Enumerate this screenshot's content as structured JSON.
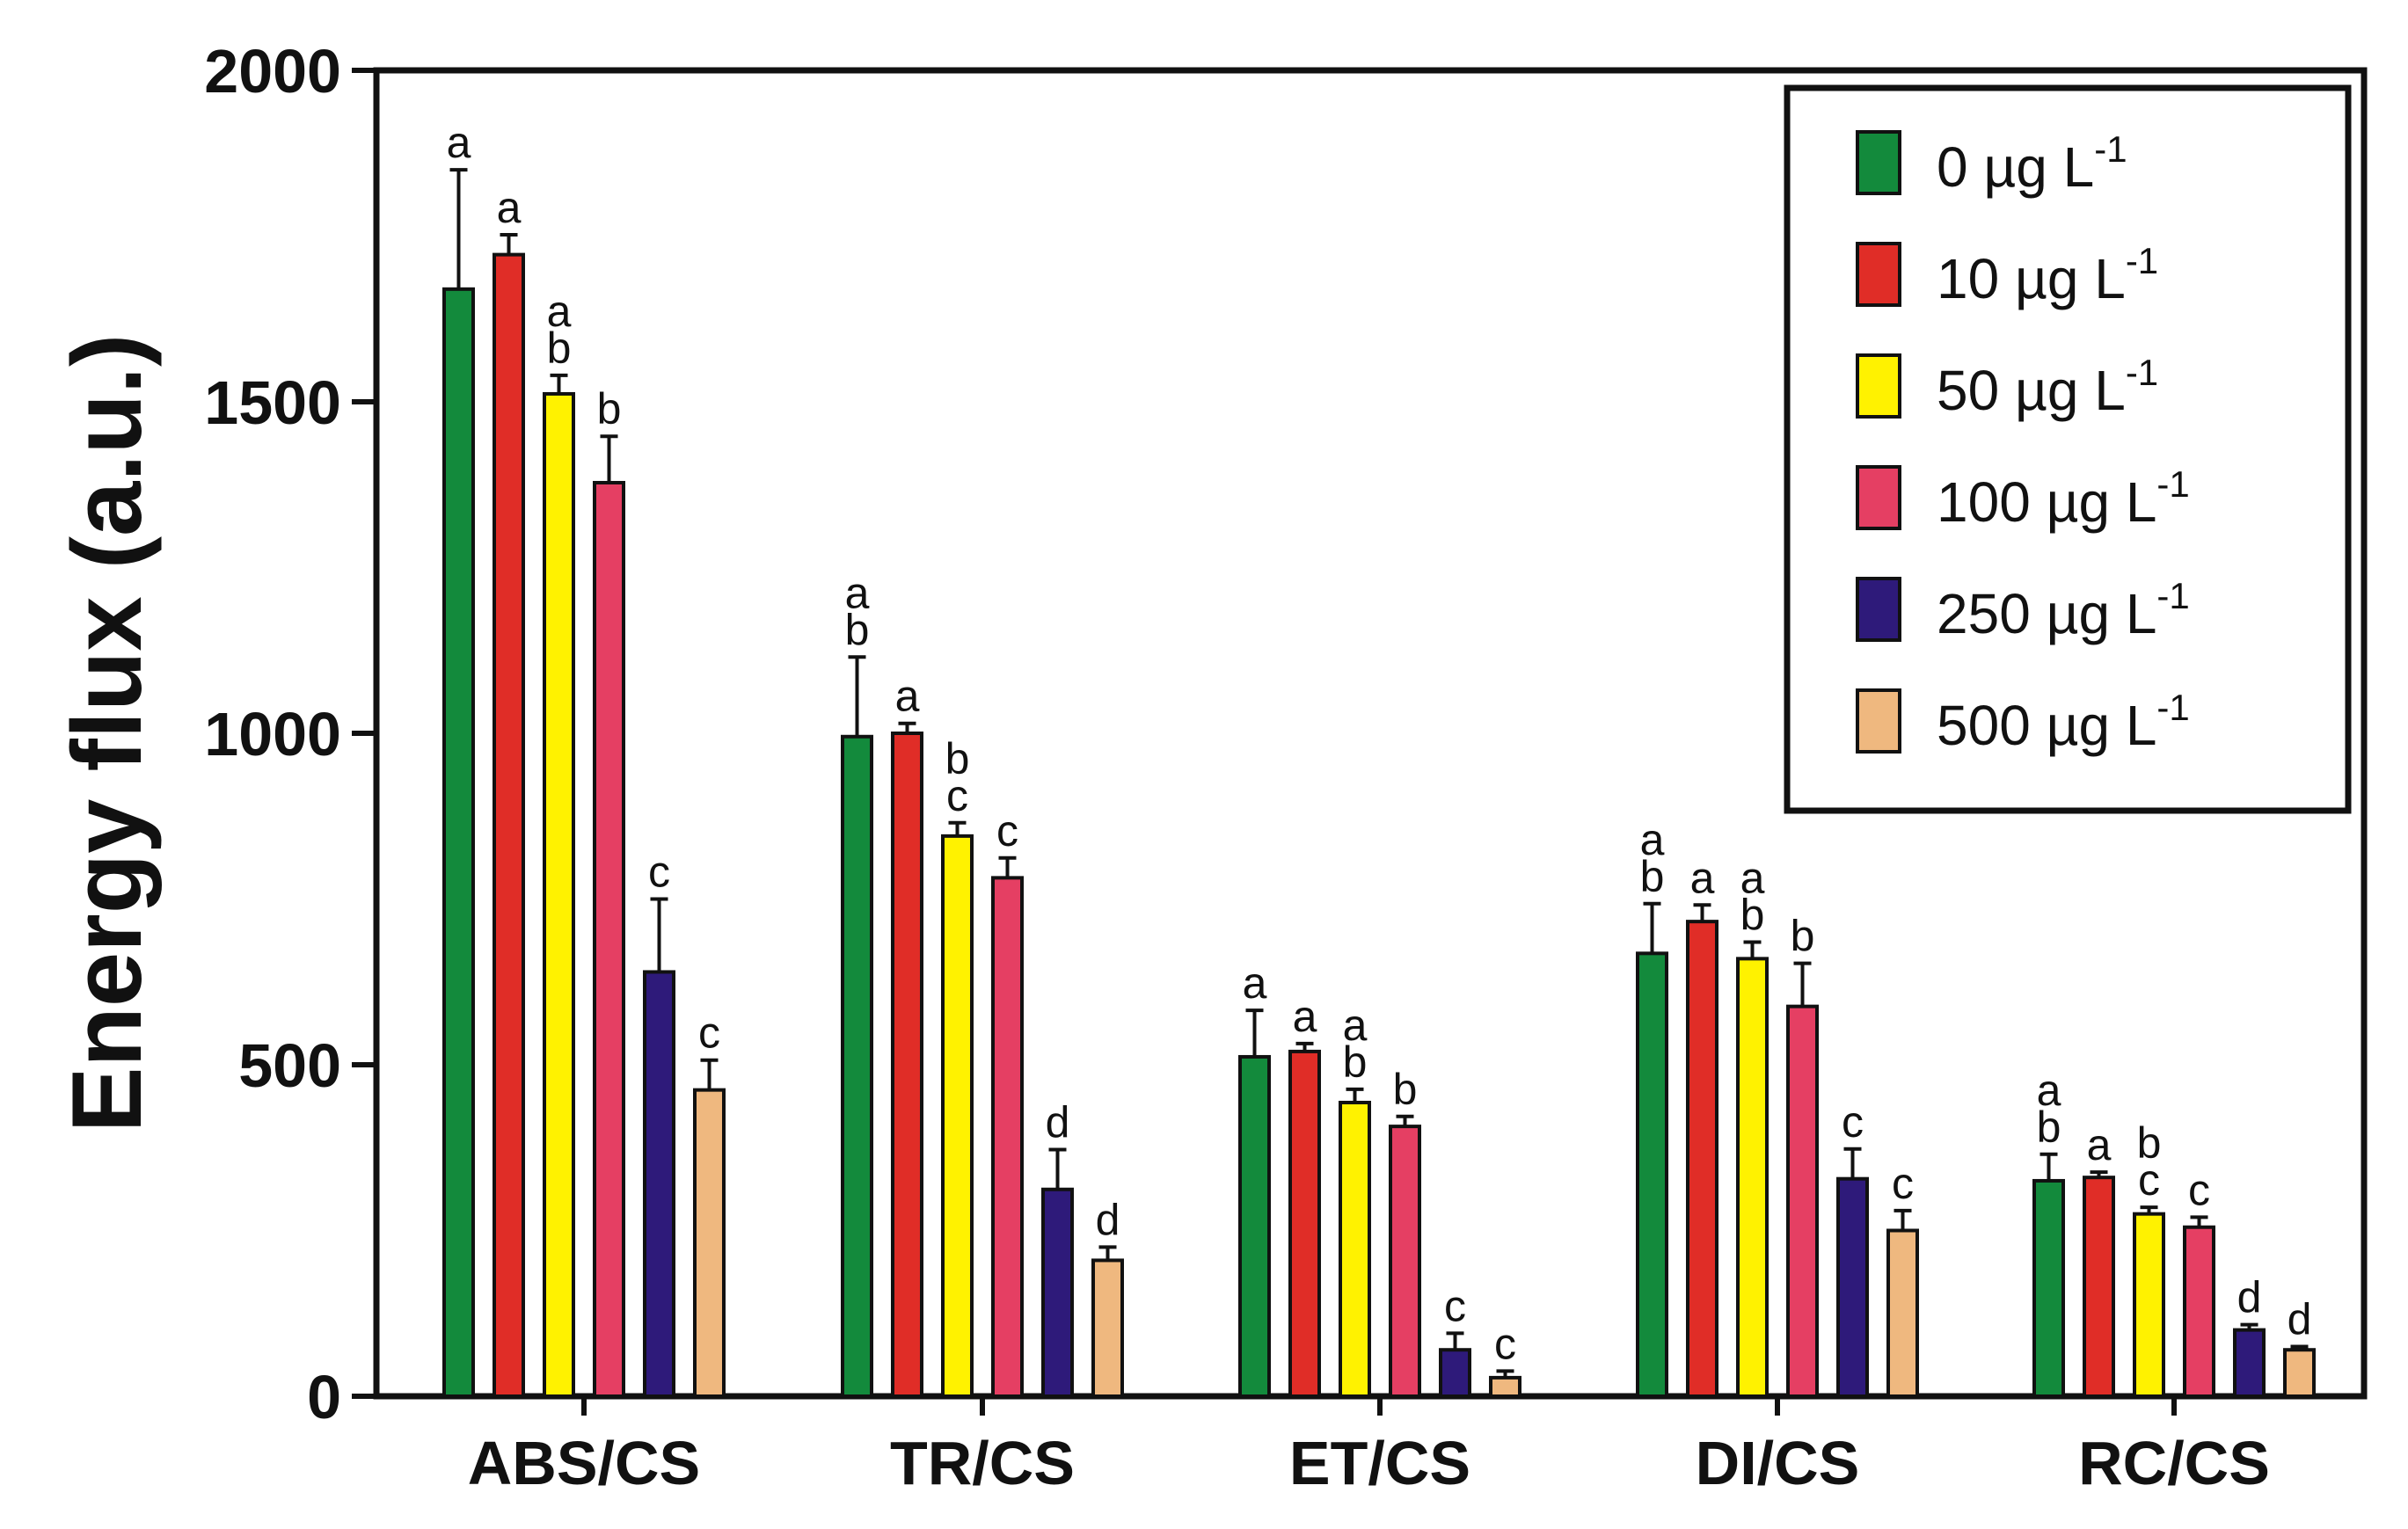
{
  "chart_data": {
    "type": "bar",
    "title": "",
    "xlabel": "",
    "ylabel": "Energy flux (a.u.)",
    "ylim": [
      0,
      2000
    ],
    "yticks": [
      "0",
      "500",
      "1000",
      "1500",
      "2000"
    ],
    "ytick_values": [
      0,
      500,
      1000,
      1500,
      2000
    ],
    "categories": [
      "ABS/CS",
      "TR/CS",
      "ET/CS",
      "DI/CS",
      "RC/CS"
    ],
    "legend_position": "top-right",
    "series": [
      {
        "name": "0 µg L-1",
        "label": "0 µg L",
        "unit_sup": "-1",
        "color": "#138a3c",
        "values": [
          1670,
          995,
          512,
          668,
          325
        ],
        "errors": [
          180,
          120,
          70,
          75,
          40
        ],
        "letters": [
          [
            "a"
          ],
          [
            "a",
            "b"
          ],
          [
            "a"
          ],
          [
            "a",
            "b"
          ],
          [
            "a",
            "b"
          ]
        ]
      },
      {
        "name": "10 µg L-1",
        "label": "10 µg L",
        "unit_sup": "-1",
        "color": "#e02d27",
        "values": [
          1722,
          1000,
          520,
          716,
          330
        ],
        "errors": [
          30,
          15,
          12,
          25,
          8
        ],
        "letters": [
          [
            "a"
          ],
          [
            "a"
          ],
          [
            "a"
          ],
          [
            "a"
          ],
          [
            "a"
          ]
        ]
      },
      {
        "name": "50 µg L-1",
        "label": "50 µg L",
        "unit_sup": "-1",
        "color": "#fff200",
        "values": [
          1512,
          845,
          443,
          660,
          275
        ],
        "errors": [
          28,
          20,
          20,
          25,
          10
        ],
        "letters": [
          [
            "a",
            "b"
          ],
          [
            "b",
            "c"
          ],
          [
            "a",
            "b"
          ],
          [
            "a",
            "b"
          ],
          [
            "b",
            "c"
          ]
        ]
      },
      {
        "name": "100 µg L-1",
        "label": "100 µg L",
        "unit_sup": "-1",
        "color": "#e53f63",
        "values": [
          1378,
          782,
          407,
          588,
          255
        ],
        "errors": [
          70,
          30,
          15,
          65,
          15
        ],
        "letters": [
          [
            "b"
          ],
          [
            "c"
          ],
          [
            "b"
          ],
          [
            "b"
          ],
          [
            "c"
          ]
        ]
      },
      {
        "name": "250 µg L-1",
        "label": "250 µg L",
        "unit_sup": "-1",
        "color": "#2e1a7a",
        "values": [
          640,
          312,
          70,
          328,
          100
        ],
        "errors": [
          110,
          60,
          25,
          45,
          8
        ],
        "letters": [
          [
            "c"
          ],
          [
            "d"
          ],
          [
            "c"
          ],
          [
            "c"
          ],
          [
            "d"
          ]
        ]
      },
      {
        "name": "500 µg L-1",
        "label": "500 µg L",
        "unit_sup": "-1",
        "color": "#efb87f",
        "values": [
          462,
          205,
          28,
          250,
          70
        ],
        "errors": [
          45,
          20,
          10,
          30,
          5
        ],
        "letters": [
          [
            "c"
          ],
          [
            "d"
          ],
          [
            "c"
          ],
          [
            "c"
          ],
          [
            "d"
          ]
        ]
      }
    ]
  }
}
